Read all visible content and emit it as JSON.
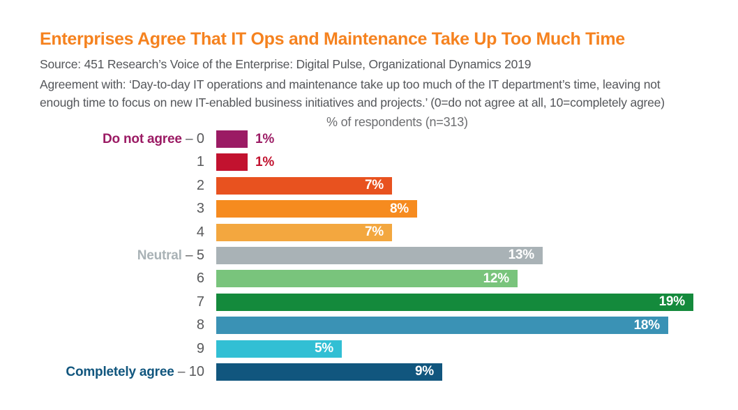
{
  "chart_data": {
    "type": "bar",
    "orientation": "horizontal",
    "title": "Enterprises Agree That IT Ops and Maintenance Take Up Too Much Time",
    "note": "% of respondents (n=313)",
    "unit": "%",
    "xlim": [
      0,
      19
    ],
    "grid": false,
    "legend": false,
    "categories": [
      "0",
      "1",
      "2",
      "3",
      "4",
      "5",
      "6",
      "7",
      "8",
      "9",
      "10"
    ],
    "values": [
      1,
      1,
      7,
      8,
      7,
      13,
      12,
      19,
      18,
      5,
      9
    ],
    "value_labels": [
      "1%",
      "1%",
      "7%",
      "8%",
      "7%",
      "13%",
      "12%",
      "19%",
      "18%",
      "5%",
      "9%"
    ],
    "bar_colors": [
      "#9B1B64",
      "#C2122F",
      "#E8521F",
      "#F68B1F",
      "#F3A73F",
      "#A9B2B6",
      "#79C47C",
      "#148A3C",
      "#3A92B5",
      "#32BFD4",
      "#11567E"
    ],
    "inside_label_min_value": 5,
    "category_prefixes": {
      "0": {
        "text": "Do not agree",
        "color": "#9B1B64"
      },
      "5": {
        "text": "Neutral",
        "color": "#A9B2B6"
      },
      "10": {
        "text": "Completely agree",
        "color": "#11567E"
      }
    },
    "prefix_separator": " – "
  },
  "header": {
    "source": "Source: 451 Research’s Voice of the Enterprise: Digital Pulse, Organizational Dynamics 2019",
    "agreement_line1": "Agreement with: ‘Day-to-day IT operations and maintenance take up too much of the IT department’s time, leaving not",
    "agreement_line2": "enough time to focus on new IT-enabled business initiatives and projects.’ (0=do not agree at all, 10=completely agree)"
  },
  "colors": {
    "title": "#F5821F",
    "body_text": "#54565A",
    "note_text": "#6D6E71",
    "axis_label": "#58595B",
    "background": "#FFFFFF"
  }
}
